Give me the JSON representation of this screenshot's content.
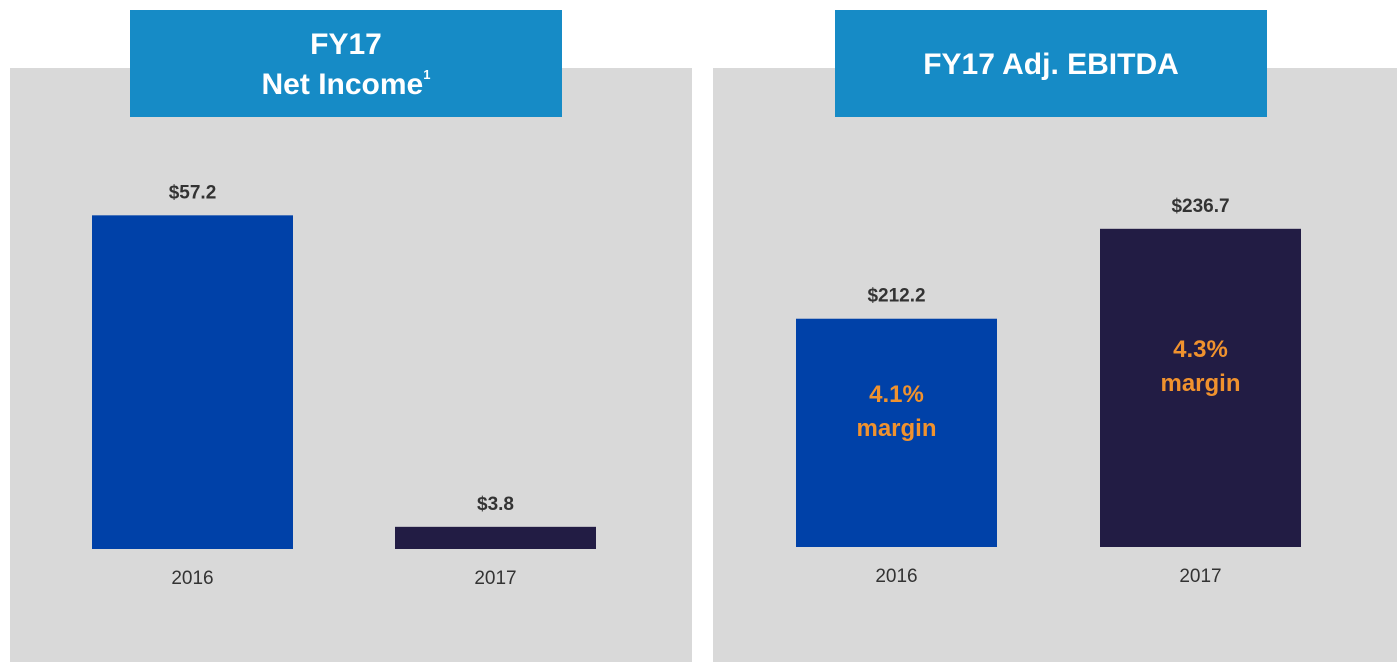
{
  "chart_data": [
    {
      "type": "bar",
      "title": "FY17",
      "subtitle": "Net Income",
      "title_footnote": "1",
      "categories": [
        "2016",
        "2017"
      ],
      "values": [
        57.2,
        3.8
      ],
      "value_labels": [
        "$57.2",
        "$3.8"
      ],
      "colors": [
        "#0041a8",
        "#221c44"
      ],
      "ylim": [
        0,
        60
      ]
    },
    {
      "type": "bar",
      "title": "FY17 Adj. EBITDA",
      "categories": [
        "2016",
        "2017"
      ],
      "values": [
        212.2,
        236.7
      ],
      "value_labels": [
        "$212.2",
        "$236.7"
      ],
      "annotations": [
        [
          "4.1%",
          "margin"
        ],
        [
          "4.3%",
          "margin"
        ]
      ],
      "colors": [
        "#0041a8",
        "#221c44"
      ],
      "ylim": [
        150,
        250
      ]
    }
  ]
}
